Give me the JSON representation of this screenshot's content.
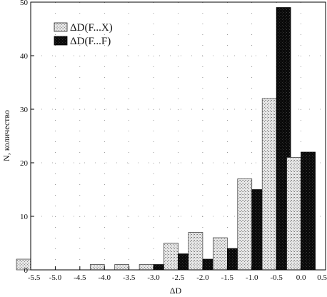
{
  "chart_data": {
    "type": "bar",
    "title": "",
    "xlabel": "ΔD",
    "ylabel": "N, количество",
    "categories": [
      -5.5,
      -5.0,
      -4.5,
      -4.0,
      -3.5,
      -3.0,
      -2.5,
      -2.0,
      -1.5,
      -1.0,
      -0.5,
      0.0
    ],
    "x_ticks": [
      "-5.5",
      "-5.0",
      "-4.5",
      "-4.0",
      "-3.5",
      "-3.0",
      "-2.5",
      "-2.0",
      "-1.5",
      "-1.0",
      "-0.5",
      "0.0",
      "0.5"
    ],
    "y_ticks": [
      "0",
      "10",
      "20",
      "30",
      "40",
      "50"
    ],
    "xlim": [
      -5.5,
      0.5
    ],
    "ylim": [
      0,
      50
    ],
    "grid": "dotted",
    "legend_position": "top-left",
    "series": [
      {
        "name": "ΔD(F...X)",
        "pattern": "light-stipple",
        "values": [
          2,
          0,
          0,
          1,
          1,
          1,
          5,
          7,
          6,
          17,
          32,
          21
        ]
      },
      {
        "name": "ΔD(F...F)",
        "pattern": "dark",
        "values": [
          0,
          0,
          0,
          0,
          0,
          1,
          3,
          2,
          4,
          15,
          49,
          22
        ]
      }
    ]
  }
}
